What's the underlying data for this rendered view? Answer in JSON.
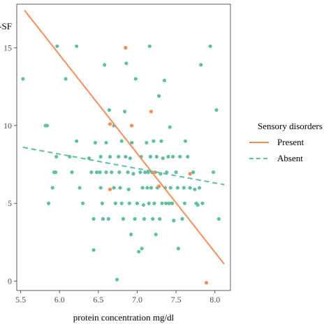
{
  "chart_data": {
    "type": "scatter",
    "ylabel": "S-SF",
    "xlabel": "protein concentration mg/dl",
    "xlim": [
      5.45,
      8.2
    ],
    "ylim": [
      -0.6,
      17.8
    ],
    "x_ticks": [
      5.5,
      6.0,
      6.5,
      7.0,
      7.5,
      8.0
    ],
    "x_tick_labels": [
      "5.5",
      "6.0",
      "6.5",
      "7.0",
      "7.5",
      "8.0"
    ],
    "y_ticks": [
      0,
      5,
      10,
      15
    ],
    "y_tick_labels": [
      "0",
      "5",
      "10",
      "15"
    ],
    "grid": false,
    "legend": {
      "title": "Sensory disorders",
      "placement": "right",
      "items": [
        {
          "label": "Present",
          "color": "#F28E5C",
          "style": "solid"
        },
        {
          "label": "Absent",
          "color": "#5FBF9E",
          "style": "dashed"
        }
      ]
    },
    "series": [
      {
        "name": "Present",
        "color": "#F28E5C",
        "points": [
          [
            6.85,
            15.0
          ],
          [
            6.65,
            10.1
          ],
          [
            6.93,
            10.0
          ],
          [
            7.18,
            10.9
          ],
          [
            6.65,
            5.9
          ],
          [
            7.23,
            7.0
          ],
          [
            7.28,
            6.1
          ],
          [
            7.68,
            6.9
          ],
          [
            7.89,
            -0.1
          ]
        ],
        "trend": {
          "x": [
            5.55,
            8.12
          ],
          "y": [
            17.4,
            1.1
          ]
        }
      },
      {
        "name": "Absent",
        "color": "#5FBF9E",
        "points": [
          [
            5.53,
            13.0
          ],
          [
            5.82,
            10.0
          ],
          [
            5.84,
            10.0
          ],
          [
            5.86,
            5.0
          ],
          [
            5.91,
            6.0
          ],
          [
            5.93,
            7.0
          ],
          [
            5.95,
            7.0
          ],
          [
            5.97,
            15.1
          ],
          [
            5.96,
            8.0
          ],
          [
            6.08,
            13.0
          ],
          [
            6.13,
            8.0
          ],
          [
            6.16,
            7.0
          ],
          [
            6.22,
            15.1
          ],
          [
            6.22,
            9.0
          ],
          [
            6.26,
            6.0
          ],
          [
            6.3,
            5.0
          ],
          [
            6.38,
            7.9
          ],
          [
            6.41,
            7.0
          ],
          [
            6.44,
            4.0
          ],
          [
            6.44,
            2.0
          ],
          [
            6.46,
            8.9
          ],
          [
            6.48,
            7.0
          ],
          [
            6.52,
            7.0
          ],
          [
            6.53,
            8.0
          ],
          [
            6.53,
            6.0
          ],
          [
            6.55,
            5.0
          ],
          [
            6.56,
            4.0
          ],
          [
            6.58,
            13.9
          ],
          [
            6.6,
            8.9
          ],
          [
            6.6,
            7.0
          ],
          [
            6.63,
            4.0
          ],
          [
            6.64,
            11.0
          ],
          [
            6.65,
            8.0
          ],
          [
            6.67,
            7.0
          ],
          [
            6.7,
            10.0
          ],
          [
            6.7,
            6.0
          ],
          [
            6.72,
            5.0
          ],
          [
            6.74,
            0.1
          ],
          [
            6.76,
            8.0
          ],
          [
            6.77,
            7.0
          ],
          [
            6.78,
            6.0
          ],
          [
            6.8,
            5.0
          ],
          [
            6.8,
            9.0
          ],
          [
            6.82,
            4.0
          ],
          [
            6.84,
            10.9
          ],
          [
            6.85,
            8.0
          ],
          [
            6.86,
            14.0
          ],
          [
            6.88,
            7.0
          ],
          [
            6.89,
            5.9
          ],
          [
            6.9,
            5.0
          ],
          [
            6.91,
            7.9
          ],
          [
            6.92,
            3.0
          ],
          [
            6.93,
            8.9
          ],
          [
            6.95,
            6.9
          ],
          [
            6.97,
            4.0
          ],
          [
            6.98,
            13.0
          ],
          [
            7.0,
            5.0
          ],
          [
            7.02,
            1.9
          ],
          [
            7.04,
            7.0
          ],
          [
            7.05,
            8.0
          ],
          [
            7.06,
            2.1
          ],
          [
            7.07,
            6.0
          ],
          [
            7.08,
            4.9
          ],
          [
            7.09,
            4.0
          ],
          [
            7.1,
            7.0
          ],
          [
            7.12,
            8.9
          ],
          [
            7.13,
            6.0
          ],
          [
            7.14,
            7.0
          ],
          [
            7.15,
            5.0
          ],
          [
            7.16,
            15.1
          ],
          [
            7.17,
            8.0
          ],
          [
            7.18,
            6.0
          ],
          [
            7.19,
            7.0
          ],
          [
            7.2,
            4.0
          ],
          [
            7.21,
            9.0
          ],
          [
            7.22,
            5.0
          ],
          [
            7.24,
            3.0
          ],
          [
            7.25,
            8.0
          ],
          [
            7.26,
            6.0
          ],
          [
            7.28,
            11.9
          ],
          [
            7.29,
            4.0
          ],
          [
            7.3,
            6.9
          ],
          [
            7.31,
            9.0
          ],
          [
            7.32,
            5.0
          ],
          [
            7.33,
            7.9
          ],
          [
            7.35,
            12.9
          ],
          [
            7.36,
            6.0
          ],
          [
            7.37,
            5.0
          ],
          [
            7.38,
            7.0
          ],
          [
            7.4,
            8.0
          ],
          [
            7.41,
            5.0
          ],
          [
            7.42,
            9.9
          ],
          [
            7.43,
            6.0
          ],
          [
            7.45,
            5.0
          ],
          [
            7.46,
            8.0
          ],
          [
            7.47,
            3.9
          ],
          [
            7.5,
            7.0
          ],
          [
            7.52,
            6.0
          ],
          [
            7.53,
            2.1
          ],
          [
            7.55,
            8.0
          ],
          [
            7.58,
            4.0
          ],
          [
            7.6,
            6.0
          ],
          [
            7.61,
            5.0
          ],
          [
            7.62,
            9.0
          ],
          [
            7.65,
            8.0
          ],
          [
            7.68,
            6.0
          ],
          [
            7.72,
            7.0
          ],
          [
            7.74,
            5.9
          ],
          [
            7.76,
            5.0
          ],
          [
            7.78,
            4.9
          ],
          [
            7.8,
            6.0
          ],
          [
            7.82,
            13.9
          ],
          [
            7.84,
            5.0
          ],
          [
            7.94,
            15.1
          ],
          [
            7.98,
            7.0
          ],
          [
            8.02,
            11.0
          ],
          [
            8.05,
            4.0
          ]
        ],
        "trend": {
          "x": [
            5.53,
            8.12
          ],
          "y": [
            8.6,
            6.2
          ]
        }
      }
    ]
  }
}
